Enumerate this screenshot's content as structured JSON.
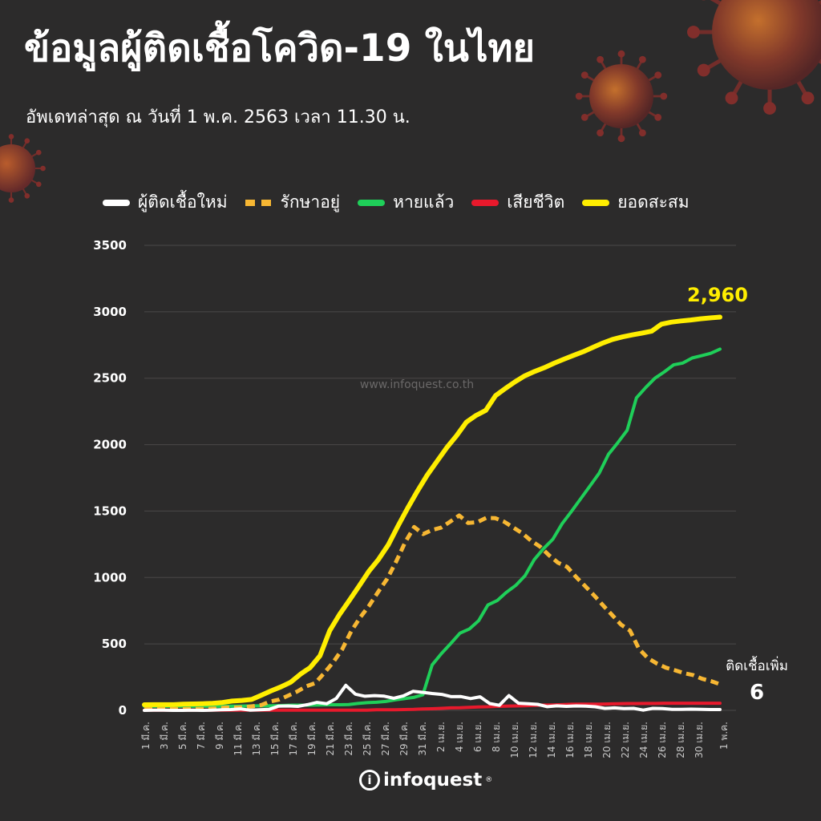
{
  "header": {
    "title": "ข้อมูลผู้ติดเชื้อโควิด-19 ในไทย",
    "subtitle": "อัพเดทล่าสุด ณ วันที่ 1 พ.ค. 2563 เวลา 11.30 น."
  },
  "watermark": "www.infoquest.co.th",
  "logo": {
    "text": "infoquest",
    "mark": "i",
    "registered": "®"
  },
  "colors": {
    "background": "#2c2b2b",
    "new_cases": "#ffffff",
    "active": "#f7b733",
    "recovered": "#1fcf59",
    "deaths": "#e8192c",
    "cumulative": "#ffee00",
    "grid": "#4a4848"
  },
  "chart_data": {
    "type": "line",
    "title": "",
    "xlabel": "",
    "ylabel": "",
    "ylim": [
      0,
      3500
    ],
    "yticks": [
      0,
      500,
      1000,
      1500,
      2000,
      2500,
      3000,
      3500
    ],
    "grid": true,
    "legend_position": "top",
    "x_tick_labels": [
      "1 มี.ค.",
      "3 มี.ค.",
      "5 มี.ค.",
      "7 มี.ค.",
      "9 มี.ค.",
      "11 มี.ค.",
      "13 มี.ค.",
      "15 มี.ค.",
      "17 มี.ค.",
      "19 มี.ค.",
      "21 มี.ค.",
      "23 มี.ค.",
      "25 มี.ค.",
      "27 มี.ค.",
      "29 มี.ค.",
      "31 มี.ค.",
      "2 เม.ย.",
      "4 เม.ย.",
      "6 เม.ย.",
      "8 เม.ย.",
      "10 เม.ย.",
      "12 เม.ย.",
      "14 เม.ย.",
      "16 เม.ย.",
      "18 เม.ย.",
      "20 เม.ย.",
      "22 เม.ย.",
      "24 เม.ย.",
      "26 เม.ย.",
      "28 เม.ย.",
      "30 เม.ย.",
      "1 พ.ค."
    ],
    "series": [
      {
        "name": "ผู้ติดเชื้อใหม่",
        "key": "new_cases",
        "style": "solid",
        "values": [
          0,
          1,
          1,
          0,
          0,
          1,
          0,
          1,
          4,
          6,
          11,
          2,
          5,
          7,
          32,
          33,
          30,
          43,
          60,
          50,
          89,
          188,
          122,
          106,
          111,
          107,
          91,
          109,
          143,
          136,
          127,
          120,
          103,
          104,
          89,
          102,
          51,
          38,
          111,
          54,
          50,
          45,
          28,
          34,
          30,
          33,
          32,
          27,
          15,
          19,
          13,
          15,
          2,
          15,
          13,
          7,
          7,
          9,
          7,
          6,
          6
        ]
      },
      {
        "name": "รักษาอยู่",
        "key": "active",
        "style": "dashed",
        "values": [
          9,
          9,
          9,
          9,
          9,
          10,
          10,
          11,
          15,
          21,
          21,
          23,
          31,
          40,
          67,
          81,
          111,
          142,
          181,
          205,
          281,
          362,
          459,
          595,
          700,
          789,
          892,
          990,
          1120,
          1264,
          1380,
          1327,
          1358,
          1375,
          1420,
          1467,
          1410,
          1416,
          1448,
          1447,
          1420,
          1377,
          1334,
          1277,
          1232,
          1167,
          1111,
          1080,
          1004,
          936,
          866,
          790,
          718,
          645,
          600,
          462,
          392,
          352,
          321,
          302,
          280,
          266,
          238,
          220,
          197
        ]
      },
      {
        "name": "หายแล้ว",
        "key": "recovered",
        "style": "solid",
        "values": [
          31,
          31,
          31,
          31,
          31,
          31,
          31,
          31,
          31,
          32,
          32,
          33,
          34,
          34,
          35,
          37,
          39,
          39,
          39,
          41,
          42,
          42,
          44,
          52,
          58,
          61,
          67,
          79,
          88,
          97,
          117,
          342,
          428,
          503,
          581,
          612,
          674,
          793,
          826,
          888,
          940,
          1013,
          1135,
          1218,
          1288,
          1405,
          1497,
          1593,
          1689,
          1787,
          1928,
          2015,
          2108,
          2352,
          2430,
          2500,
          2547,
          2600,
          2614,
          2652,
          2669,
          2687,
          2719
        ]
      },
      {
        "name": "เสียชีวิต",
        "key": "deaths",
        "style": "solid",
        "values": [
          1,
          1,
          1,
          1,
          1,
          1,
          1,
          1,
          1,
          1,
          1,
          1,
          1,
          1,
          1,
          1,
          1,
          1,
          1,
          1,
          1,
          1,
          1,
          1,
          1,
          4,
          4,
          5,
          6,
          7,
          10,
          12,
          15,
          19,
          20,
          23,
          26,
          27,
          30,
          32,
          33,
          35,
          38,
          40,
          41,
          43,
          46,
          47,
          47,
          47,
          48,
          50,
          51,
          51,
          52,
          52,
          54,
          54,
          54,
          54,
          54,
          54,
          54
        ]
      },
      {
        "name": "ยอดสะสม",
        "key": "cumulative",
        "style": "solid",
        "values": [
          42,
          43,
          43,
          43,
          47,
          48,
          50,
          53,
          59,
          70,
          75,
          82,
          114,
          147,
          177,
          212,
          272,
          322,
          411,
          599,
          721,
          827,
          934,
          1045,
          1136,
          1245,
          1388,
          1524,
          1651,
          1771,
          1875,
          1978,
          2067,
          2169,
          2220,
          2258,
          2369,
          2423,
          2473,
          2518,
          2551,
          2579,
          2613,
          2643,
          2672,
          2700,
          2733,
          2765,
          2792,
          2811,
          2826,
          2839,
          2854,
          2907,
          2922,
          2931,
          2938,
          2947,
          2954,
          2960
        ]
      }
    ],
    "annotations": [
      {
        "label": "2,960",
        "series": "cumulative",
        "position": "end"
      },
      {
        "label": "ติดเชื้อเพิ่ม",
        "position": "right"
      },
      {
        "label": "6",
        "position": "right"
      }
    ]
  }
}
